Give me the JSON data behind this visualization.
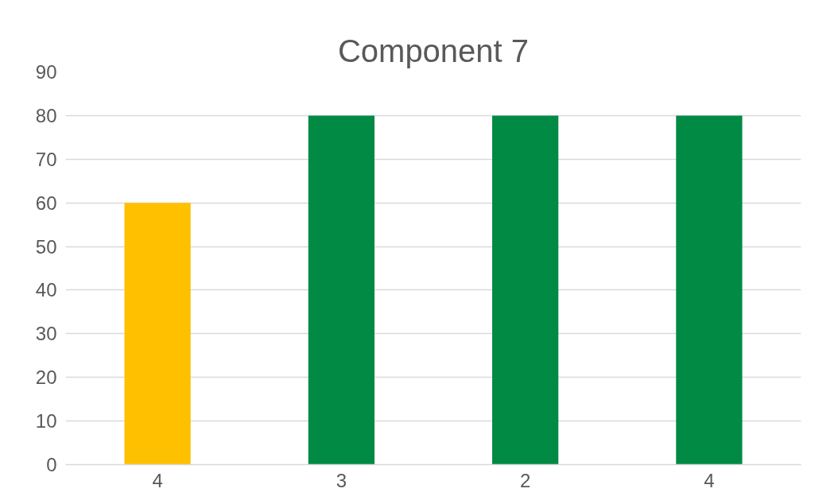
{
  "chart_data": {
    "type": "bar",
    "title": "Component 7",
    "categories": [
      "4",
      "3",
      "2",
      "4"
    ],
    "values": [
      60,
      80,
      80,
      80
    ],
    "colors": [
      "#ffc000",
      "#008a44",
      "#008a44",
      "#008a44"
    ],
    "ylim": [
      0,
      90
    ],
    "yticks": [
      0,
      10,
      20,
      30,
      40,
      50,
      60,
      70,
      80,
      90
    ],
    "grid": "y"
  }
}
